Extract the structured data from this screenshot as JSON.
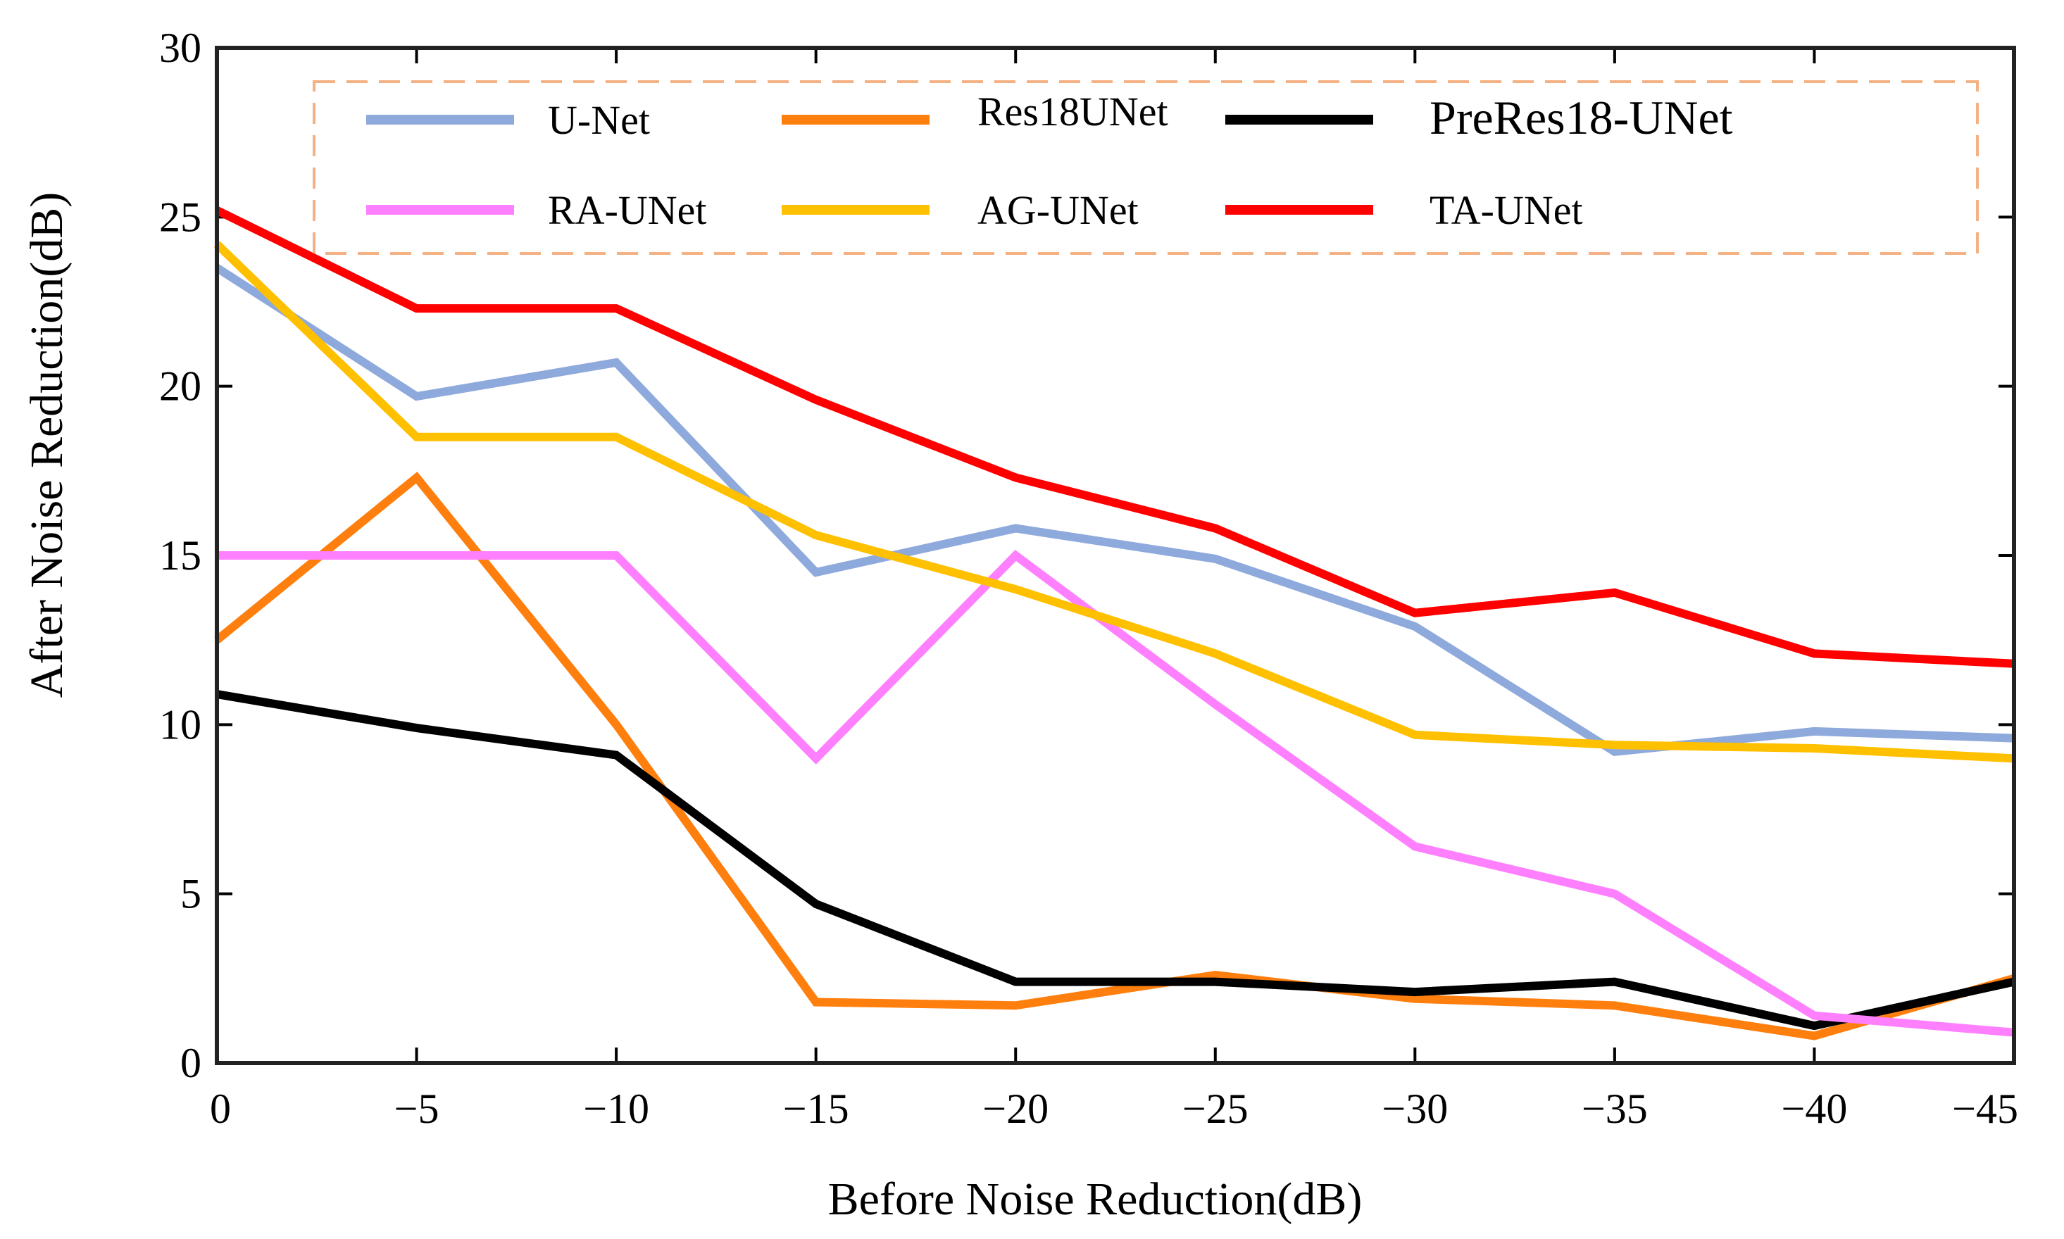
{
  "chart_data": {
    "type": "line",
    "title": "",
    "xlabel": "Before Noise Reduction(dB)",
    "ylabel": "After Noise Reduction(dB)",
    "x": [
      0,
      -5,
      -10,
      -15,
      -20,
      -25,
      -30,
      -35,
      -40,
      -45
    ],
    "x_tick_labels": [
      "0",
      "−5",
      "−10",
      "−15",
      "−20",
      "−25",
      "−30",
      "−35",
      "−40",
      "−45"
    ],
    "ylim": [
      0,
      30
    ],
    "y_ticks": [
      0,
      5,
      10,
      15,
      20,
      25,
      30
    ],
    "y_tick_labels": [
      "0",
      "5",
      "10",
      "15",
      "20",
      "25",
      "30"
    ],
    "grid": false,
    "legend_position": "top",
    "series": [
      {
        "name": "U-Net",
        "color": "#8EA9DB",
        "values": [
          23.5,
          19.7,
          20.7,
          14.5,
          15.8,
          14.9,
          12.9,
          9.2,
          9.8,
          9.6
        ]
      },
      {
        "name": "Res18UNet",
        "color": "#FF7F0E",
        "values": [
          12.5,
          17.3,
          10.0,
          1.8,
          1.7,
          2.6,
          1.9,
          1.7,
          0.8,
          2.5
        ]
      },
      {
        "name": "PreRes18-UNet",
        "color": "#000000",
        "values": [
          10.9,
          9.9,
          9.1,
          4.7,
          2.4,
          2.4,
          2.1,
          2.4,
          1.1,
          2.4
        ]
      },
      {
        "name": "RA-UNet",
        "color": "#FF80FF",
        "values": [
          15.0,
          15.0,
          15.0,
          9.0,
          15.0,
          10.6,
          6.4,
          5.0,
          1.4,
          0.9
        ]
      },
      {
        "name": "AG-UNet",
        "color": "#FFC000",
        "values": [
          24.2,
          18.5,
          18.5,
          15.6,
          14.0,
          12.1,
          9.7,
          9.4,
          9.3,
          9.0
        ]
      },
      {
        "name": "TA-UNet",
        "color": "#FF0000",
        "values": [
          25.2,
          22.3,
          22.3,
          19.6,
          17.3,
          15.8,
          13.3,
          13.9,
          12.1,
          11.8
        ]
      }
    ]
  },
  "legend_box_color": "#F4B183"
}
